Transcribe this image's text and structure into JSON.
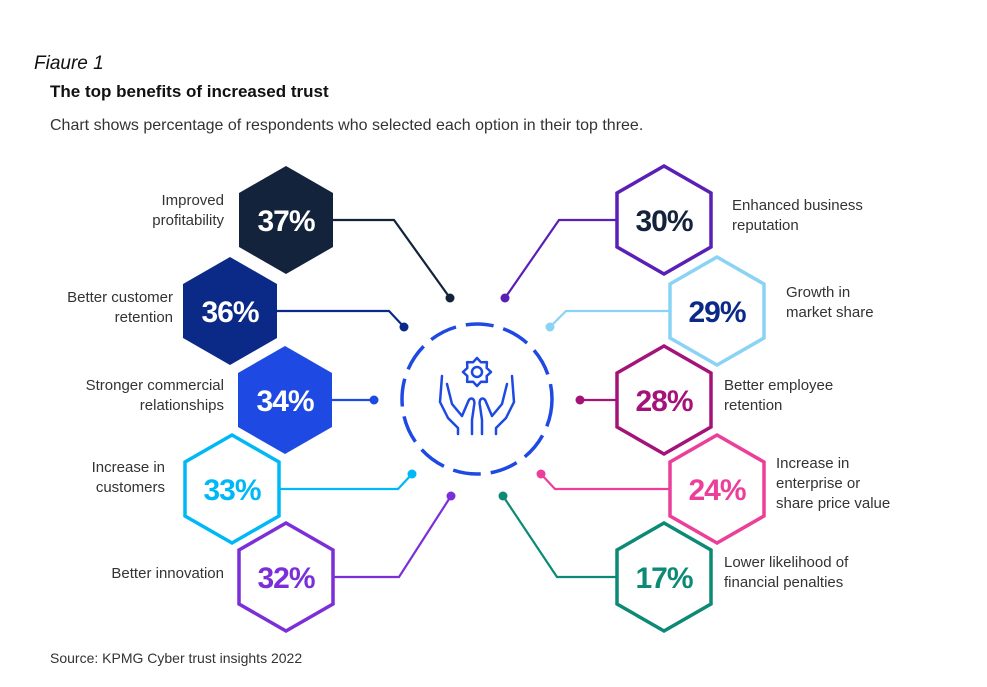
{
  "figure_caption": "Fiaure 1",
  "title": "The top benefits of increased trust",
  "subtitle": "Chart shows percentage of respondents who selected each option in their top three.",
  "source": "Source: KPMG Cyber trust insights 2022",
  "center_icon": "hands-holding-gear-icon",
  "colors": {
    "navy": "#14233c",
    "darkblue": "#0b2a87",
    "blue": "#1e49e2",
    "cyan": "#00b8f5",
    "purple": "#7b2fd9",
    "violet": "#5a1fb5",
    "lightblue": "#8ad3f5",
    "magenta": "#a3137a",
    "pink": "#eb3f9a",
    "teal": "#0c8a76",
    "center": "#1e49e2"
  },
  "chart_data": {
    "type": "infographic",
    "unit": "%",
    "items": [
      {
        "label": "Improved profitability",
        "label_lines": [
          "Improved",
          "profitability"
        ],
        "value": 37,
        "display": "37%",
        "style": "filled",
        "color": "#14233c",
        "text_color": "#ffffff",
        "side": "left"
      },
      {
        "label": "Better customer retention",
        "label_lines": [
          "Better customer",
          "retention"
        ],
        "value": 36,
        "display": "36%",
        "style": "filled",
        "color": "#0b2a87",
        "text_color": "#ffffff",
        "side": "left"
      },
      {
        "label": "Stronger commercial relationships",
        "label_lines": [
          "Stronger commercial",
          "relationships"
        ],
        "value": 34,
        "display": "34%",
        "style": "filled",
        "color": "#1e49e2",
        "text_color": "#ffffff",
        "side": "left"
      },
      {
        "label": "Increase in customers",
        "label_lines": [
          "Increase in",
          "customers"
        ],
        "value": 33,
        "display": "33%",
        "style": "outline",
        "color": "#00b8f5",
        "text_color": "#00b8f5",
        "side": "left"
      },
      {
        "label": "Better innovation",
        "label_lines": [
          "Better innovation"
        ],
        "value": 32,
        "display": "32%",
        "style": "outline",
        "color": "#7b2fd9",
        "text_color": "#7b2fd9",
        "side": "left"
      },
      {
        "label": "Enhanced business reputation",
        "label_lines": [
          "Enhanced business",
          "reputation"
        ],
        "value": 30,
        "display": "30%",
        "style": "outline",
        "color": "#5a1fb5",
        "text_color": "#14233c",
        "side": "right"
      },
      {
        "label": "Growth in market share",
        "label_lines": [
          "Growth in",
          "market share"
        ],
        "value": 29,
        "display": "29%",
        "style": "outline",
        "color": "#8ad3f5",
        "text_color": "#0b2a87",
        "side": "right"
      },
      {
        "label": "Better employee retention",
        "label_lines": [
          "Better employee",
          "retention"
        ],
        "value": 28,
        "display": "28%",
        "style": "outline",
        "color": "#a3137a",
        "text_color": "#a3137a",
        "side": "right"
      },
      {
        "label": "Increase in enterprise or share price value",
        "label_lines": [
          "Increase in",
          "enterprise or",
          "share price value"
        ],
        "value": 24,
        "display": "24%",
        "style": "outline",
        "color": "#eb3f9a",
        "text_color": "#eb3f9a",
        "side": "right"
      },
      {
        "label": "Lower likelihood of financial penalties",
        "label_lines": [
          "Lower likelihood of",
          "financial penalties"
        ],
        "value": 17,
        "display": "17%",
        "style": "outline",
        "color": "#0c8a76",
        "text_color": "#0c8a76",
        "side": "right"
      }
    ]
  }
}
